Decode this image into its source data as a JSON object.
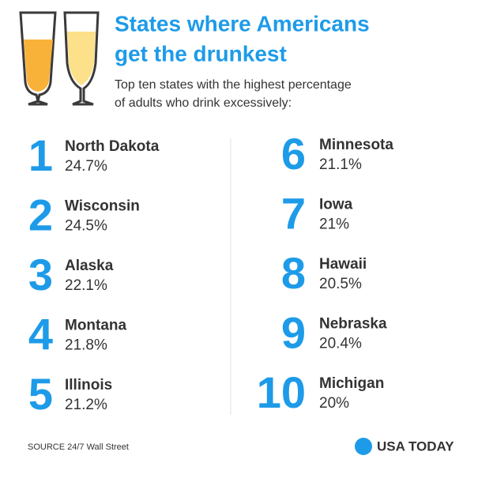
{
  "header": {
    "title": [
      "States where Americans",
      "get the drunkest"
    ],
    "subtitle": [
      "Top ten states with the highest percentage",
      "of adults who drink excessively:"
    ]
  },
  "items": [
    {
      "rank": "1",
      "state": "North Dakota",
      "value": "24.7%"
    },
    {
      "rank": "2",
      "state": "Wisconsin",
      "value": "24.5%"
    },
    {
      "rank": "3",
      "state": "Alaska",
      "value": "22.1%"
    },
    {
      "rank": "4",
      "state": "Montana",
      "value": "21.8%"
    },
    {
      "rank": "5",
      "state": "Illinois",
      "value": "21.2%"
    },
    {
      "rank": "6",
      "state": "Minnesota",
      "value": "21.1%"
    },
    {
      "rank": "7",
      "state": "Iowa",
      "value": "21%"
    },
    {
      "rank": "8",
      "state": "Hawaii",
      "value": "20.5%"
    },
    {
      "rank": "9",
      "state": "Nebraska",
      "value": "20.4%"
    },
    {
      "rank": "10",
      "state": "Michigan",
      "value": "20%"
    }
  ],
  "footer": {
    "source": "SOURCE 24/7 Wall Street",
    "logo": "USA TODAY"
  }
}
